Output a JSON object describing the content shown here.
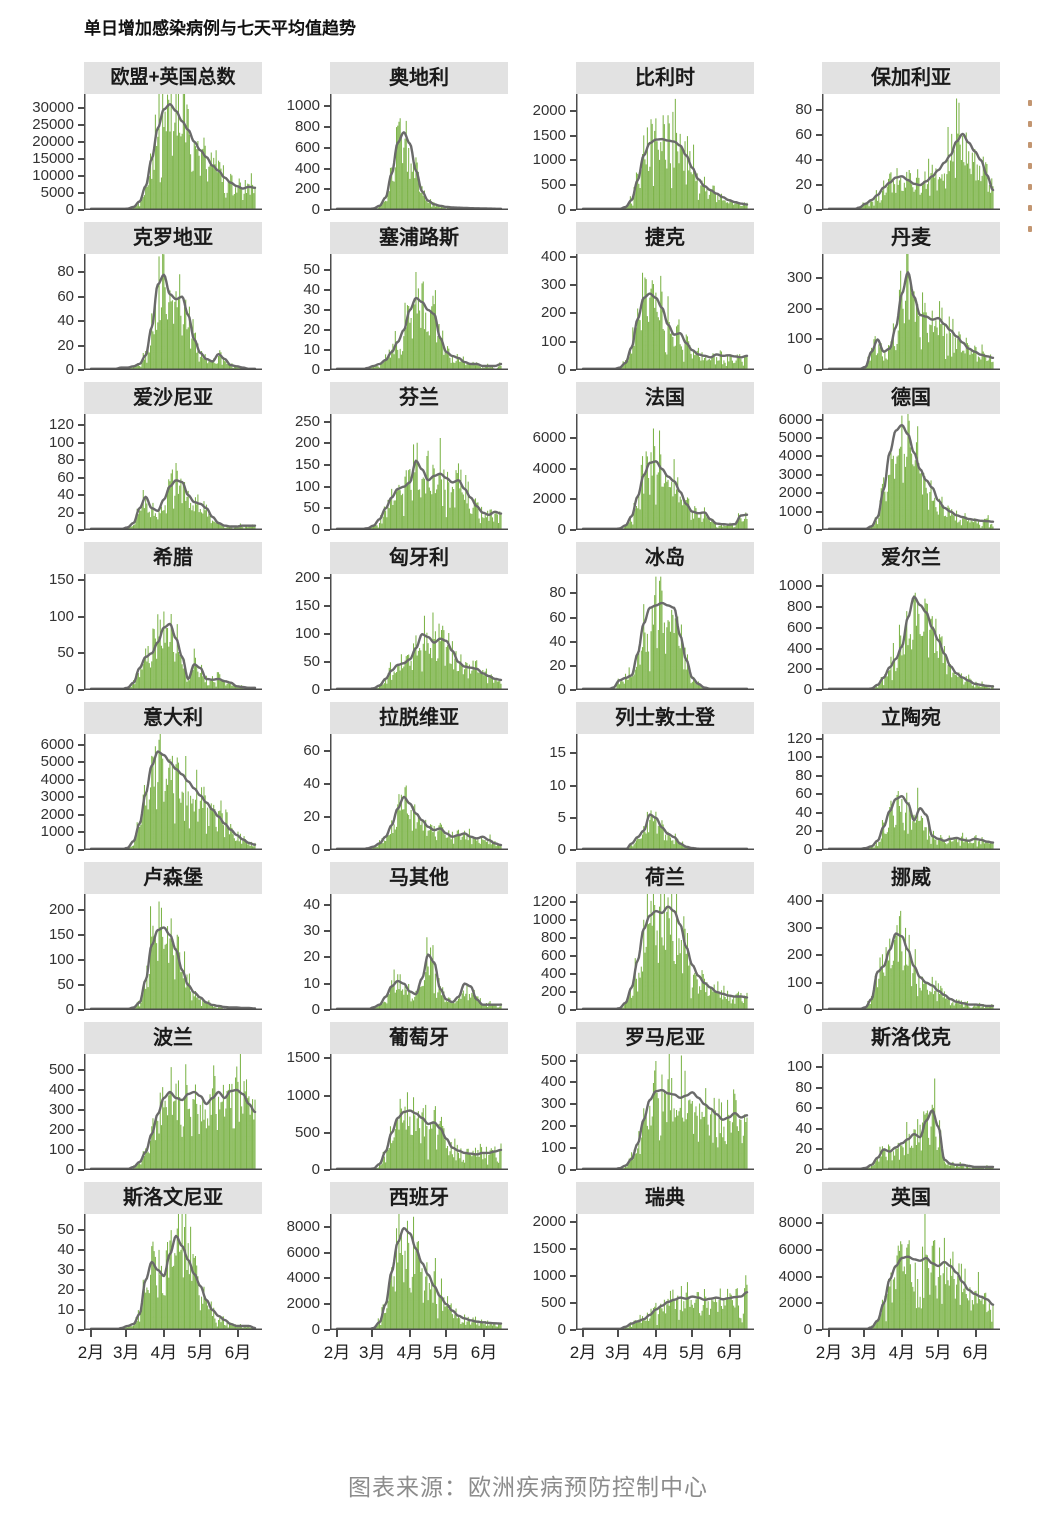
{
  "title": "单日增加感染病例与七天平均值趋势",
  "source_note": "图表来源：欧洲疾病预防控制中心",
  "colors": {
    "bar": "#7db44a",
    "line": "#6a6a6a",
    "strip_bg": "#e2e2e2",
    "axis": "#4d4d4d",
    "tick_text": "#333333",
    "title_text": "#111111",
    "source_text": "#8c8c8c"
  },
  "chart_data": {
    "type": "bar",
    "subtype": "small-multiples bar+line",
    "bar_series": "单日增加感染病例",
    "line_series": "七天平均值",
    "grid": {
      "columns": 4,
      "rows": 8
    },
    "x_axis": {
      "tick_labels": [
        "2月",
        "3月",
        "4月",
        "5月",
        "6月"
      ],
      "tick_days": [
        0,
        29,
        60,
        90,
        121
      ],
      "range_days": [
        0,
        135
      ]
    },
    "sample_step_days": 5,
    "facets": [
      {
        "name": "欧盟+英国总数",
        "yticks": [
          0,
          5000,
          10000,
          15000,
          20000,
          25000,
          30000
        ],
        "ylim": 34000,
        "avg": [
          0,
          0,
          0,
          0,
          50,
          150,
          400,
          900,
          2500,
          7000,
          15000,
          24000,
          29500,
          31000,
          29000,
          26000,
          23500,
          20000,
          17500,
          15500,
          13000,
          11500,
          9500,
          8000,
          7000,
          6300,
          6800,
          6500
        ]
      },
      {
        "name": "奥地利",
        "yticks": [
          0,
          200,
          400,
          600,
          800,
          1000
        ],
        "ylim": 1120,
        "avg": [
          0,
          0,
          0,
          0,
          0,
          5,
          15,
          40,
          120,
          350,
          650,
          750,
          640,
          380,
          180,
          90,
          55,
          40,
          30,
          25,
          22,
          20,
          18,
          16,
          15,
          14,
          12,
          10
        ]
      },
      {
        "name": "比利时",
        "yticks": [
          0,
          500,
          1000,
          1500,
          2000
        ],
        "ylim": 2340,
        "avg": [
          0,
          0,
          0,
          0,
          0,
          5,
          20,
          60,
          200,
          600,
          1100,
          1350,
          1420,
          1430,
          1400,
          1380,
          1300,
          1100,
          850,
          620,
          480,
          400,
          330,
          260,
          200,
          160,
          130,
          110
        ]
      },
      {
        "name": "保加利亚",
        "yticks": [
          0,
          20,
          40,
          60,
          80
        ],
        "ylim": 93,
        "avg": [
          0,
          0,
          0,
          0,
          0,
          2,
          5,
          8,
          12,
          18,
          22,
          26,
          27,
          24,
          21,
          20,
          23,
          27,
          32,
          38,
          44,
          55,
          61,
          54,
          47,
          40,
          28,
          16
        ]
      },
      {
        "name": "克罗地亚",
        "yticks": [
          0,
          20,
          40,
          60,
          80
        ],
        "ylim": 95,
        "avg": [
          0,
          0,
          0,
          0,
          1,
          2,
          2,
          3,
          5,
          12,
          35,
          70,
          78,
          62,
          58,
          60,
          45,
          25,
          14,
          9,
          7,
          13,
          9,
          4,
          3,
          2,
          1,
          1
        ]
      },
      {
        "name": "塞浦路斯",
        "yticks": [
          0,
          10,
          20,
          30,
          40,
          50
        ],
        "ylim": 58,
        "avg": [
          0,
          0,
          0,
          0,
          0,
          1,
          2,
          3,
          5,
          9,
          14,
          20,
          30,
          36,
          34,
          30,
          28,
          16,
          9,
          7,
          6,
          4,
          3,
          3,
          2,
          2,
          2,
          3
        ]
      },
      {
        "name": "捷克",
        "yticks": [
          0,
          100,
          200,
          300,
          400
        ],
        "ylim": 410,
        "avg": [
          0,
          0,
          0,
          0,
          1,
          3,
          8,
          25,
          80,
          180,
          255,
          270,
          255,
          220,
          160,
          125,
          130,
          95,
          70,
          55,
          50,
          45,
          55,
          50,
          52,
          48,
          45,
          50
        ]
      },
      {
        "name": "丹麦",
        "yticks": [
          0,
          100,
          200,
          300
        ],
        "ylim": 380,
        "avg": [
          0,
          0,
          0,
          0,
          0,
          3,
          10,
          60,
          100,
          60,
          70,
          140,
          250,
          320,
          240,
          180,
          175,
          165,
          170,
          150,
          130,
          110,
          90,
          70,
          60,
          50,
          45,
          40
        ]
      },
      {
        "name": "爱沙尼亚",
        "yticks": [
          0,
          20,
          40,
          60,
          80,
          100,
          120
        ],
        "ylim": 133,
        "avg": [
          0,
          0,
          0,
          0,
          0,
          1,
          3,
          8,
          25,
          38,
          25,
          22,
          35,
          50,
          57,
          55,
          40,
          32,
          30,
          25,
          15,
          8,
          5,
          4,
          4,
          5,
          5,
          5
        ]
      },
      {
        "name": "芬兰",
        "yticks": [
          0,
          50,
          100,
          150,
          200,
          250
        ],
        "ylim": 268,
        "avg": [
          0,
          0,
          0,
          1,
          2,
          4,
          10,
          25,
          50,
          75,
          95,
          100,
          110,
          160,
          140,
          115,
          125,
          130,
          120,
          110,
          115,
          95,
          75,
          55,
          40,
          35,
          42,
          38
        ]
      },
      {
        "name": "法国",
        "yticks": [
          0,
          2000,
          4000,
          6000
        ],
        "ylim": 7600,
        "avg": [
          0,
          0,
          0,
          0,
          10,
          30,
          100,
          300,
          900,
          2200,
          3600,
          4400,
          4500,
          4000,
          3500,
          3200,
          2500,
          1700,
          1200,
          1100,
          1150,
          700,
          420,
          380,
          350,
          380,
          950,
          1000
        ]
      },
      {
        "name": "德国",
        "yticks": [
          0,
          1000,
          2000,
          3000,
          4000,
          5000,
          6000
        ],
        "ylim": 6300,
        "avg": [
          0,
          0,
          0,
          0,
          5,
          20,
          60,
          200,
          700,
          2200,
          4200,
          5400,
          5700,
          5200,
          4200,
          3300,
          2700,
          2300,
          1600,
          1200,
          1000,
          800,
          700,
          600,
          550,
          500,
          480,
          450
        ]
      },
      {
        "name": "希腊",
        "yticks": [
          0,
          50,
          100,
          150
        ],
        "ylim": 158,
        "avg": [
          0,
          0,
          0,
          0,
          0,
          1,
          3,
          10,
          30,
          45,
          50,
          65,
          85,
          90,
          70,
          45,
          15,
          35,
          30,
          15,
          14,
          15,
          12,
          10,
          5,
          4,
          3,
          3
        ]
      },
      {
        "name": "匈牙利",
        "yticks": [
          0,
          50,
          100,
          150,
          200
        ],
        "ylim": 208,
        "avg": [
          0,
          0,
          0,
          0,
          0,
          1,
          3,
          8,
          20,
          35,
          45,
          48,
          55,
          75,
          100,
          95,
          85,
          92,
          88,
          70,
          50,
          42,
          40,
          38,
          30,
          25,
          20,
          18
        ]
      },
      {
        "name": "冰岛",
        "yticks": [
          0,
          20,
          40,
          60,
          80
        ],
        "ylim": 96,
        "avg": [
          0,
          0,
          0,
          0,
          0,
          2,
          8,
          10,
          12,
          30,
          55,
          68,
          70,
          72,
          70,
          68,
          45,
          25,
          10,
          5,
          2,
          1,
          1,
          1,
          0,
          0,
          0,
          0
        ]
      },
      {
        "name": "爱尔兰",
        "yticks": [
          0,
          200,
          400,
          600,
          800,
          1000
        ],
        "ylim": 1120,
        "avg": [
          0,
          0,
          0,
          0,
          0,
          2,
          5,
          15,
          50,
          120,
          220,
          300,
          420,
          700,
          900,
          820,
          750,
          600,
          480,
          350,
          230,
          160,
          120,
          90,
          60,
          50,
          40,
          35
        ]
      },
      {
        "name": "意大利",
        "yticks": [
          0,
          1000,
          2000,
          3000,
          4000,
          5000,
          6000
        ],
        "ylim": 6600,
        "avg": [
          0,
          0,
          0,
          0,
          2,
          20,
          120,
          500,
          1500,
          3200,
          4800,
          5600,
          5400,
          5000,
          4600,
          4300,
          3900,
          3500,
          3100,
          2700,
          2300,
          1900,
          1500,
          1150,
          850,
          600,
          400,
          300
        ]
      },
      {
        "name": "拉脱维亚",
        "yticks": [
          0,
          20,
          40,
          60
        ],
        "ylim": 70,
        "avg": [
          0,
          0,
          0,
          0,
          0,
          1,
          2,
          4,
          8,
          15,
          25,
          32,
          28,
          22,
          18,
          14,
          12,
          13,
          10,
          8,
          9,
          10,
          8,
          7,
          8,
          6,
          4,
          3
        ]
      },
      {
        "name": "列士敦士登",
        "yticks": [
          0,
          5,
          10,
          15
        ],
        "ylim": 18,
        "avg": [
          0,
          0,
          0,
          0,
          0,
          0,
          0,
          0,
          1,
          2,
          3,
          5.5,
          5,
          3.5,
          2.5,
          2,
          1,
          0.5,
          0.3,
          0.2,
          0.1,
          0,
          0,
          0,
          0,
          0,
          0,
          0
        ]
      },
      {
        "name": "立陶宛",
        "yticks": [
          0,
          20,
          40,
          60,
          80,
          100,
          120
        ],
        "ylim": 125,
        "avg": [
          0,
          0,
          0,
          0,
          0,
          1,
          2,
          4,
          10,
          25,
          42,
          55,
          58,
          50,
          32,
          45,
          38,
          15,
          12,
          10,
          12,
          13,
          11,
          10,
          12,
          11,
          9,
          8
        ]
      },
      {
        "name": "卢森堡",
        "yticks": [
          0,
          50,
          100,
          150,
          200
        ],
        "ylim": 232,
        "avg": [
          0,
          0,
          0,
          0,
          0,
          0,
          2,
          5,
          15,
          60,
          130,
          160,
          165,
          150,
          120,
          80,
          50,
          35,
          25,
          15,
          10,
          8,
          6,
          5,
          5,
          4,
          4,
          3
        ]
      },
      {
        "name": "马其他",
        "yticks": [
          0,
          10,
          20,
          30,
          40
        ],
        "ylim": 44,
        "avg": [
          0,
          0,
          0,
          0,
          0,
          0,
          1,
          2,
          5,
          9,
          11,
          10,
          7,
          6,
          12,
          21,
          18,
          8,
          4,
          3,
          5,
          10,
          9,
          4,
          2,
          2,
          2,
          2
        ]
      },
      {
        "name": "荷兰",
        "yticks": [
          0,
          200,
          400,
          600,
          800,
          1000,
          1200
        ],
        "ylim": 1290,
        "avg": [
          0,
          0,
          0,
          0,
          0,
          5,
          20,
          80,
          250,
          550,
          900,
          1050,
          1100,
          1080,
          1150,
          1100,
          950,
          700,
          500,
          380,
          300,
          250,
          200,
          180,
          160,
          150,
          150,
          140
        ]
      },
      {
        "name": "挪威",
        "yticks": [
          0,
          100,
          200,
          300,
          400
        ],
        "ylim": 425,
        "avg": [
          0,
          0,
          0,
          0,
          1,
          3,
          10,
          40,
          140,
          160,
          220,
          280,
          270,
          220,
          160,
          120,
          100,
          90,
          70,
          55,
          40,
          30,
          25,
          20,
          20,
          18,
          15,
          15
        ]
      },
      {
        "name": "波兰",
        "yticks": [
          0,
          100,
          200,
          300,
          400,
          500
        ],
        "ylim": 580,
        "avg": [
          0,
          0,
          0,
          0,
          0,
          2,
          5,
          15,
          40,
          90,
          180,
          280,
          360,
          390,
          360,
          350,
          380,
          390,
          370,
          330,
          360,
          390,
          360,
          395,
          400,
          380,
          330,
          290
        ]
      },
      {
        "name": "葡萄牙",
        "yticks": [
          0,
          500,
          1000,
          1500
        ],
        "ylim": 1560,
        "avg": [
          0,
          0,
          0,
          0,
          0,
          5,
          20,
          80,
          250,
          500,
          700,
          780,
          800,
          760,
          700,
          620,
          640,
          560,
          420,
          300,
          260,
          230,
          220,
          210,
          230,
          230,
          250,
          270
        ]
      },
      {
        "name": "罗马尼亚",
        "yticks": [
          0,
          100,
          200,
          300,
          400,
          500
        ],
        "ylim": 530,
        "avg": [
          0,
          0,
          0,
          0,
          1,
          3,
          8,
          20,
          50,
          120,
          230,
          320,
          360,
          365,
          350,
          345,
          330,
          340,
          355,
          330,
          300,
          280,
          255,
          230,
          240,
          260,
          240,
          250
        ]
      },
      {
        "name": "斯洛伐克",
        "yticks": [
          0,
          20,
          40,
          60,
          80,
          100
        ],
        "ylim": 113,
        "avg": [
          0,
          0,
          0,
          0,
          0,
          1,
          2,
          5,
          12,
          20,
          18,
          22,
          26,
          30,
          35,
          32,
          48,
          58,
          42,
          10,
          6,
          5,
          5,
          4,
          3,
          3,
          3,
          3
        ]
      },
      {
        "name": "斯洛文尼亚",
        "yticks": [
          0,
          10,
          20,
          30,
          40,
          50
        ],
        "ylim": 58,
        "avg": [
          0,
          0,
          0,
          0,
          0,
          1,
          2,
          3,
          8,
          25,
          34,
          30,
          27,
          38,
          47,
          42,
          35,
          28,
          22,
          15,
          10,
          7,
          5,
          3,
          2,
          2,
          2,
          1
        ]
      },
      {
        "name": "西班牙",
        "yticks": [
          0,
          2000,
          4000,
          6000,
          8000
        ],
        "ylim": 9000,
        "avg": [
          0,
          0,
          0,
          0,
          2,
          20,
          150,
          600,
          2000,
          4500,
          6800,
          7900,
          7500,
          6300,
          5200,
          4300,
          3400,
          2600,
          2000,
          1500,
          1100,
          900,
          750,
          650,
          600,
          550,
          520,
          500
        ]
      },
      {
        "name": "瑞典",
        "yticks": [
          0,
          500,
          1000,
          1500,
          2000
        ],
        "ylim": 2150,
        "avg": [
          0,
          0,
          0,
          0,
          1,
          5,
          20,
          60,
          120,
          160,
          200,
          280,
          380,
          450,
          520,
          560,
          600,
          580,
          620,
          600,
          560,
          580,
          600,
          570,
          590,
          610,
          620,
          700
        ]
      },
      {
        "name": "英国",
        "yticks": [
          0,
          2000,
          4000,
          6000,
          8000
        ],
        "ylim": 8700,
        "avg": [
          0,
          0,
          0,
          0,
          2,
          10,
          50,
          200,
          700,
          2000,
          3800,
          4800,
          5400,
          5500,
          5300,
          5200,
          5400,
          5000,
          4800,
          5100,
          4800,
          4300,
          3600,
          3000,
          2700,
          2500,
          2300,
          1900
        ]
      }
    ]
  }
}
